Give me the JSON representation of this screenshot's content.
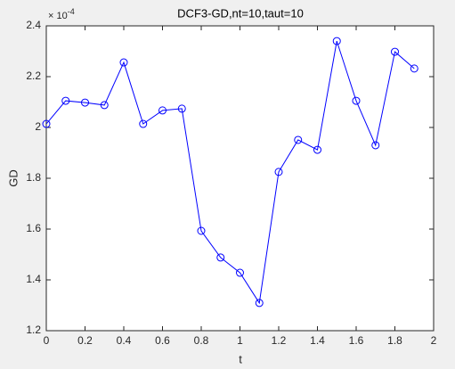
{
  "chart_data": {
    "type": "line",
    "title": "DCF3-GD,nt=10,taut=10",
    "xlabel": "t",
    "ylabel": "GD",
    "y_multiplier": {
      "base": "× 10",
      "exponent": "-4"
    },
    "x": [
      0,
      0.1,
      0.2,
      0.3,
      0.4,
      0.5,
      0.6,
      0.7,
      0.8,
      0.9,
      1.0,
      1.1,
      1.2,
      1.3,
      1.4,
      1.5,
      1.6,
      1.7,
      1.8,
      1.9
    ],
    "series": [
      {
        "color": "#0000ff",
        "marker": "circle",
        "values": [
          2.014,
          2.105,
          2.098,
          2.088,
          2.256,
          2.014,
          2.067,
          2.074,
          1.593,
          1.488,
          1.428,
          1.309,
          1.825,
          1.951,
          1.912,
          2.34,
          2.105,
          1.93,
          2.298,
          2.232
        ]
      }
    ],
    "xlim": [
      0,
      2
    ],
    "xticks": [
      0,
      0.2,
      0.4,
      0.6,
      0.8,
      1,
      1.2,
      1.4,
      1.6,
      1.8,
      2
    ],
    "ylim": [
      1.2,
      2.4
    ],
    "yticks": [
      1.2,
      1.4,
      1.6,
      1.8,
      2,
      2.2,
      2.4
    ],
    "grid": false
  }
}
